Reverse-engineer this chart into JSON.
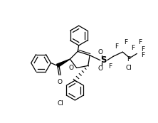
{
  "background": "#ffffff",
  "figsize": [
    2.22,
    1.73
  ],
  "dpi": 100,
  "line_color": "#000000",
  "line_width": 0.9,
  "font_size": 6.5,
  "xlim": [
    0,
    222
  ],
  "ylim": [
    0,
    173
  ]
}
